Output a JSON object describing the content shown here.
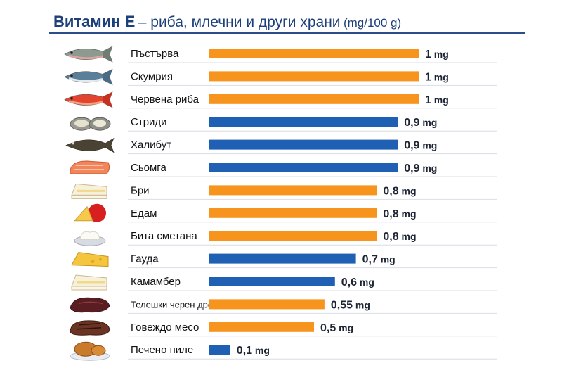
{
  "header": {
    "title_main": "Витамин Е",
    "title_sub": "– риба, млечни и други храни",
    "title_unit": "(mg/100 g)"
  },
  "colors": {
    "orange": "#f7941d",
    "blue": "#1f5fb4",
    "title": "#1d3f7a",
    "grid": "#d9dde4"
  },
  "chart_data": {
    "type": "bar",
    "orientation": "horizontal",
    "unit": "mg",
    "xlim": [
      0,
      1
    ],
    "categories": [
      "Пъстърва",
      "Скумрия",
      "Червена риба",
      "Стриди",
      "Халибут",
      "Сьомга",
      "Бри",
      "Едам",
      "Бита сметана",
      "Гауда",
      "Камамбер",
      "Телешки черен дроб",
      "Говеждо месо",
      "Печено пиле"
    ],
    "values": [
      1,
      1,
      1,
      0.9,
      0.9,
      0.9,
      0.8,
      0.8,
      0.8,
      0.7,
      0.6,
      0.55,
      0.5,
      0.1
    ],
    "value_labels": [
      "1",
      "1",
      "1",
      "0,9",
      "0,9",
      "0,9",
      "0,8",
      "0,8",
      "0,8",
      "0,7",
      "0,6",
      "0,55",
      "0,5",
      "0,1"
    ],
    "bar_colors": [
      "orange",
      "orange",
      "orange",
      "blue",
      "blue",
      "blue",
      "orange",
      "orange",
      "orange",
      "blue",
      "blue",
      "orange",
      "orange",
      "blue"
    ],
    "icons": [
      "trout-icon",
      "mackerel-icon",
      "red-fish-icon",
      "oysters-icon",
      "halibut-icon",
      "salmon-steak-icon",
      "brie-icon",
      "edam-icon",
      "whipped-cream-icon",
      "gouda-icon",
      "camembert-icon",
      "beef-liver-icon",
      "beef-steak-icon",
      "roast-chicken-icon"
    ]
  }
}
